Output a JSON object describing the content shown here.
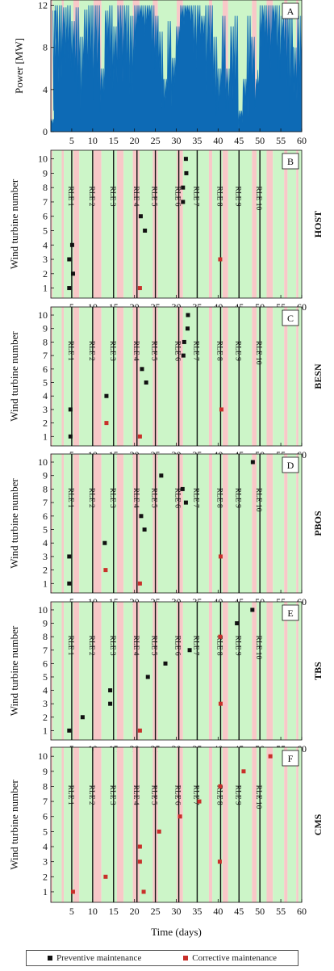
{
  "figure": {
    "xlabel": "Time (days)",
    "legend": {
      "preventive": "Preventive maintenance",
      "corrective": "Corrective maintenance",
      "placement": "bottom-center"
    },
    "colors": {
      "green_window": "#ccf5c8",
      "red_window": "#f8c8c8",
      "power": "#0d6ab5",
      "preventive": "#111111",
      "corrective": "#c8302a",
      "rle_line": "#111111"
    }
  },
  "chart_data": [
    {
      "panel": "A",
      "type": "area",
      "ylabel": "Power [MW]",
      "xlim": [
        0,
        60
      ],
      "ylim": [
        0,
        12.5
      ],
      "yticks": [
        0,
        4,
        8,
        12
      ],
      "xticks": [
        5,
        10,
        15,
        20,
        25,
        30,
        35,
        40,
        45,
        50,
        55,
        60
      ],
      "weather_windows": [
        {
          "x0": 0,
          "x1": 0.4,
          "state": "red"
        },
        {
          "x0": 0.4,
          "x1": 2.6,
          "state": "green"
        },
        {
          "x0": 2.6,
          "x1": 3.1,
          "state": "red"
        },
        {
          "x0": 3.1,
          "x1": 5.4,
          "state": "green"
        },
        {
          "x0": 5.4,
          "x1": 6.8,
          "state": "red"
        },
        {
          "x0": 6.8,
          "x1": 10.2,
          "state": "green"
        },
        {
          "x0": 10.2,
          "x1": 12.1,
          "state": "red"
        },
        {
          "x0": 12.1,
          "x1": 15.8,
          "state": "green"
        },
        {
          "x0": 15.8,
          "x1": 17.4,
          "state": "red"
        },
        {
          "x0": 17.4,
          "x1": 19.6,
          "state": "green"
        },
        {
          "x0": 19.6,
          "x1": 21.2,
          "state": "red"
        },
        {
          "x0": 21.2,
          "x1": 24.4,
          "state": "green"
        },
        {
          "x0": 24.4,
          "x1": 25.6,
          "state": "red"
        },
        {
          "x0": 25.6,
          "x1": 30.1,
          "state": "green"
        },
        {
          "x0": 30.1,
          "x1": 31.6,
          "state": "red"
        },
        {
          "x0": 31.6,
          "x1": 37.8,
          "state": "green"
        },
        {
          "x0": 37.8,
          "x1": 38.6,
          "state": "red"
        },
        {
          "x0": 38.6,
          "x1": 41.1,
          "state": "green"
        },
        {
          "x0": 41.1,
          "x1": 42.4,
          "state": "red"
        },
        {
          "x0": 42.4,
          "x1": 48.1,
          "state": "green"
        },
        {
          "x0": 48.1,
          "x1": 49.2,
          "state": "red"
        },
        {
          "x0": 49.2,
          "x1": 51.6,
          "state": "green"
        },
        {
          "x0": 51.6,
          "x1": 53.1,
          "state": "red"
        },
        {
          "x0": 53.1,
          "x1": 55.8,
          "state": "green"
        },
        {
          "x0": 55.8,
          "x1": 56.6,
          "state": "red"
        },
        {
          "x0": 56.6,
          "x1": 58.7,
          "state": "green"
        },
        {
          "x0": 58.7,
          "x1": 59.2,
          "state": "red"
        },
        {
          "x0": 59.2,
          "x1": 60,
          "state": "green"
        }
      ],
      "power_envelope": [
        [
          0,
          1.2
        ],
        [
          0.5,
          11.5
        ],
        [
          1,
          12
        ],
        [
          2,
          12
        ],
        [
          3,
          11.8
        ],
        [
          4,
          12
        ],
        [
          5,
          10.5
        ],
        [
          6,
          11.8
        ],
        [
          7,
          9
        ],
        [
          8,
          11.6
        ],
        [
          9,
          12
        ],
        [
          10,
          12
        ],
        [
          11,
          12
        ],
        [
          12,
          6
        ],
        [
          13,
          11.5
        ],
        [
          14,
          12
        ],
        [
          15,
          10
        ],
        [
          16,
          12
        ],
        [
          17,
          12
        ],
        [
          18,
          12
        ],
        [
          19,
          11
        ],
        [
          20,
          12
        ],
        [
          21,
          12
        ],
        [
          22,
          12
        ],
        [
          23,
          12
        ],
        [
          24,
          12
        ],
        [
          25,
          11
        ],
        [
          26,
          9.5
        ],
        [
          27,
          5
        ],
        [
          28,
          10.5
        ],
        [
          29,
          7
        ],
        [
          30,
          10
        ],
        [
          31,
          12
        ],
        [
          32,
          12
        ],
        [
          33,
          12
        ],
        [
          34,
          12
        ],
        [
          35,
          12
        ],
        [
          36,
          11
        ],
        [
          37,
          12
        ],
        [
          38,
          12
        ],
        [
          39,
          9
        ],
        [
          40,
          6
        ],
        [
          41,
          11
        ],
        [
          42,
          6
        ],
        [
          43,
          10
        ],
        [
          44,
          11
        ],
        [
          45,
          2
        ],
        [
          46,
          5
        ],
        [
          47,
          11
        ],
        [
          48,
          9
        ],
        [
          49,
          4
        ],
        [
          50,
          12
        ],
        [
          51,
          12
        ],
        [
          52,
          12
        ],
        [
          53,
          12
        ],
        [
          54,
          12
        ],
        [
          55,
          11
        ],
        [
          56,
          12
        ],
        [
          57,
          12
        ],
        [
          58,
          8
        ],
        [
          59,
          11
        ],
        [
          60,
          11
        ]
      ],
      "power_troughs": [
        [
          0,
          0.5
        ],
        [
          1,
          2
        ],
        [
          2,
          4
        ],
        [
          3,
          5
        ],
        [
          4,
          5
        ],
        [
          5,
          6
        ],
        [
          6,
          3
        ],
        [
          7,
          2
        ],
        [
          8,
          0.5
        ],
        [
          9,
          4
        ],
        [
          10,
          5
        ],
        [
          11,
          3
        ],
        [
          12,
          1
        ],
        [
          13,
          3
        ],
        [
          14,
          6
        ],
        [
          15,
          4
        ],
        [
          16,
          3
        ],
        [
          17,
          6
        ],
        [
          18,
          4
        ],
        [
          19,
          2
        ],
        [
          20,
          3
        ],
        [
          21,
          8
        ],
        [
          22,
          10
        ],
        [
          23,
          9
        ],
        [
          24,
          10
        ],
        [
          25,
          6
        ],
        [
          26,
          4
        ],
        [
          27,
          1
        ],
        [
          28,
          2
        ],
        [
          29,
          1
        ],
        [
          30,
          4
        ],
        [
          31,
          7
        ],
        [
          32,
          10
        ],
        [
          33,
          11
        ],
        [
          34,
          9
        ],
        [
          35,
          6
        ],
        [
          36,
          7
        ],
        [
          37,
          8
        ],
        [
          38,
          3
        ],
        [
          39,
          2
        ],
        [
          40,
          1
        ],
        [
          41,
          2
        ],
        [
          42,
          1.5
        ],
        [
          43,
          2
        ],
        [
          44,
          1
        ],
        [
          45,
          0
        ],
        [
          46,
          0.5
        ],
        [
          47,
          2
        ],
        [
          48,
          0.5
        ],
        [
          49,
          1
        ],
        [
          50,
          6
        ],
        [
          51,
          8
        ],
        [
          52,
          7
        ],
        [
          53,
          6
        ],
        [
          54,
          9
        ],
        [
          55,
          5
        ],
        [
          56,
          6
        ],
        [
          57,
          3
        ],
        [
          58,
          1
        ],
        [
          59,
          2
        ],
        [
          60,
          3
        ]
      ]
    },
    {
      "panel": "B",
      "strategy": "HOST",
      "type": "scatter",
      "ylabel": "Wind turbine number",
      "xlabel": "",
      "xlim": [
        0,
        60
      ],
      "ylim": [
        0.3,
        10.6
      ],
      "yticks": [
        1,
        2,
        3,
        4,
        5,
        6,
        7,
        8,
        9,
        10
      ],
      "xticks": [
        5,
        10,
        15,
        20,
        25,
        30,
        35,
        40,
        45,
        50,
        55,
        60
      ],
      "rle": [
        {
          "label": "RLE 1",
          "x": 5
        },
        {
          "label": "RLE 2",
          "x": 10
        },
        {
          "label": "RLE 3",
          "x": 15
        },
        {
          "label": "RLE 4",
          "x": 20.6
        },
        {
          "label": "RLE 5",
          "x": 25
        },
        {
          "label": "RLE 6",
          "x": 30.6
        },
        {
          "label": "RLE 7",
          "x": 35
        },
        {
          "label": "RLE 8",
          "x": 40.6
        },
        {
          "label": "RLE 9",
          "x": 45
        },
        {
          "label": "RLE 10",
          "x": 50
        }
      ],
      "preventive": [
        [
          4.4,
          1
        ],
        [
          5.3,
          2
        ],
        [
          4.4,
          3
        ],
        [
          5.1,
          4
        ],
        [
          22.5,
          5
        ],
        [
          21.5,
          6
        ],
        [
          31.6,
          7
        ],
        [
          31.6,
          8
        ],
        [
          32.4,
          9
        ],
        [
          32.3,
          10
        ]
      ],
      "corrective": [
        [
          21.3,
          1
        ],
        [
          40.5,
          3
        ]
      ]
    },
    {
      "panel": "C",
      "strategy": "BESN",
      "type": "scatter",
      "ylabel": "Wind turbine number",
      "xlim": [
        0,
        60
      ],
      "ylim": [
        0.3,
        10.6
      ],
      "yticks": [
        1,
        2,
        3,
        4,
        5,
        6,
        7,
        8,
        9,
        10
      ],
      "xticks": [
        5,
        10,
        15,
        20,
        25,
        30,
        35,
        40,
        45,
        50,
        55,
        60
      ],
      "rle": [
        {
          "label": "RLE 1",
          "x": 5
        },
        {
          "label": "RLE 2",
          "x": 10
        },
        {
          "label": "RLE 3",
          "x": 15
        },
        {
          "label": "RLE 4",
          "x": 20.6
        },
        {
          "label": "RLE 5",
          "x": 25
        },
        {
          "label": "RLE 6",
          "x": 30.6
        },
        {
          "label": "RLE 7",
          "x": 35
        },
        {
          "label": "RLE 8",
          "x": 40.6
        },
        {
          "label": "RLE 9",
          "x": 45
        },
        {
          "label": "RLE 10",
          "x": 50
        }
      ],
      "preventive": [
        [
          4.7,
          1
        ],
        [
          4.7,
          3
        ],
        [
          13.3,
          4
        ],
        [
          22.8,
          5
        ],
        [
          21.8,
          6
        ],
        [
          31.7,
          7
        ],
        [
          31.9,
          8
        ],
        [
          32.7,
          9
        ],
        [
          32.8,
          10
        ]
      ],
      "corrective": [
        [
          13.3,
          2
        ],
        [
          21.3,
          1
        ],
        [
          40.8,
          3
        ]
      ]
    },
    {
      "panel": "D",
      "strategy": "PBOS",
      "type": "scatter",
      "ylabel": "Wind turbine number",
      "xlim": [
        0,
        60
      ],
      "ylim": [
        0.3,
        10.6
      ],
      "yticks": [
        1,
        2,
        3,
        4,
        5,
        6,
        7,
        8,
        9,
        10
      ],
      "xticks": [
        5,
        10,
        15,
        20,
        25,
        30,
        35,
        40,
        45,
        50,
        55,
        60
      ],
      "rle": [
        {
          "label": "RLE 1",
          "x": 5
        },
        {
          "label": "RLE 2",
          "x": 10
        },
        {
          "label": "RLE 3",
          "x": 15
        },
        {
          "label": "RLE 4",
          "x": 20.6
        },
        {
          "label": "RLE 5",
          "x": 25
        },
        {
          "label": "RLE 6",
          "x": 30.6
        },
        {
          "label": "RLE 7",
          "x": 35
        },
        {
          "label": "RLE 8",
          "x": 40.6
        },
        {
          "label": "RLE 9",
          "x": 45
        },
        {
          "label": "RLE 10",
          "x": 50
        }
      ],
      "preventive": [
        [
          4.4,
          1
        ],
        [
          4.4,
          3
        ],
        [
          12.9,
          4
        ],
        [
          22.4,
          5
        ],
        [
          21.6,
          6
        ],
        [
          32.3,
          7
        ],
        [
          31.5,
          8
        ],
        [
          26.4,
          9
        ],
        [
          48.3,
          10
        ]
      ],
      "corrective": [
        [
          13.1,
          2
        ],
        [
          21.3,
          1
        ],
        [
          40.6,
          3
        ]
      ]
    },
    {
      "panel": "E",
      "strategy": "TBS",
      "type": "scatter",
      "ylabel": "Wind turbine number",
      "xlim": [
        0,
        60
      ],
      "ylim": [
        0.3,
        10.6
      ],
      "yticks": [
        1,
        2,
        3,
        4,
        5,
        6,
        7,
        8,
        9,
        10
      ],
      "xticks": [
        5,
        10,
        15,
        20,
        25,
        30,
        35,
        40,
        45,
        50,
        55,
        60
      ],
      "rle": [
        {
          "label": "RLE 1",
          "x": 5
        },
        {
          "label": "RLE 2",
          "x": 10
        },
        {
          "label": "RLE 3",
          "x": 15
        },
        {
          "label": "RLE 4",
          "x": 20.6
        },
        {
          "label": "RLE 5",
          "x": 25
        },
        {
          "label": "RLE 6",
          "x": 30.6
        },
        {
          "label": "RLE 7",
          "x": 35
        },
        {
          "label": "RLE 8",
          "x": 40.6
        },
        {
          "label": "RLE 9",
          "x": 45
        },
        {
          "label": "RLE 10",
          "x": 50
        }
      ],
      "preventive": [
        [
          4.4,
          1
        ],
        [
          7.6,
          2
        ],
        [
          14.2,
          3
        ],
        [
          14.2,
          4
        ],
        [
          23.2,
          5
        ],
        [
          27.4,
          6
        ],
        [
          33.2,
          7
        ],
        [
          44.5,
          9
        ],
        [
          48.2,
          10
        ]
      ],
      "corrective": [
        [
          21.3,
          1
        ],
        [
          40.6,
          3
        ],
        [
          40.5,
          8
        ]
      ]
    },
    {
      "panel": "F",
      "strategy": "CMS",
      "type": "scatter",
      "ylabel": "Wind turbine number",
      "xlim": [
        0,
        60
      ],
      "ylim": [
        0.3,
        10.6
      ],
      "yticks": [
        1,
        2,
        3,
        4,
        5,
        6,
        7,
        8,
        9,
        10
      ],
      "xticks": [
        5,
        10,
        15,
        20,
        25,
        30,
        35,
        40,
        45,
        50,
        55,
        60
      ],
      "rle": [
        {
          "label": "RLE 1",
          "x": 5
        },
        {
          "label": "RLE 2",
          "x": 10
        },
        {
          "label": "RLE 3",
          "x": 15
        },
        {
          "label": "RLE 4",
          "x": 20.6
        },
        {
          "label": "RLE 5",
          "x": 25
        },
        {
          "label": "RLE 6",
          "x": 30.6
        },
        {
          "label": "RLE 7",
          "x": 35
        },
        {
          "label": "RLE 8",
          "x": 40.6
        },
        {
          "label": "RLE 9",
          "x": 45
        },
        {
          "label": "RLE 10",
          "x": 50
        }
      ],
      "preventive": [],
      "corrective": [
        [
          5.3,
          1
        ],
        [
          13.1,
          2
        ],
        [
          21.3,
          3
        ],
        [
          21.3,
          4
        ],
        [
          22.2,
          1
        ],
        [
          25.9,
          5
        ],
        [
          30.9,
          6
        ],
        [
          35.5,
          7
        ],
        [
          40.4,
          3
        ],
        [
          40.5,
          8
        ],
        [
          46.1,
          9
        ],
        [
          52.5,
          10
        ]
      ]
    }
  ]
}
